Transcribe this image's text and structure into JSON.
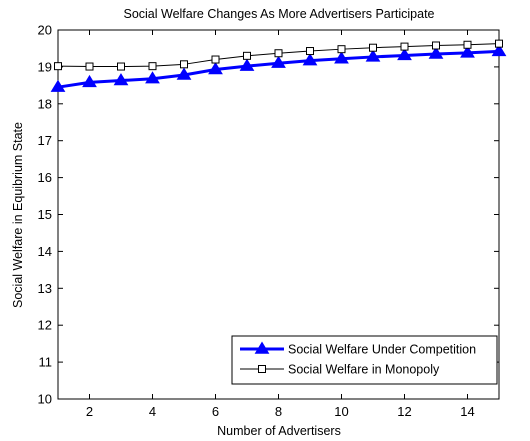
{
  "chart_data": {
    "type": "line",
    "title": "Social Welfare Changes As More Advertisers Participate",
    "xlabel": "Number of Advertisers",
    "ylabel": "Social Welfare in Equibrium State",
    "xlim": [
      1,
      15
    ],
    "ylim": [
      10,
      20
    ],
    "xticks": [
      2,
      4,
      6,
      8,
      10,
      12,
      14
    ],
    "yticks": [
      10,
      11,
      12,
      13,
      14,
      15,
      16,
      17,
      18,
      19,
      20
    ],
    "grid": false,
    "legend_position": "lower-right",
    "x": [
      1,
      2,
      3,
      4,
      5,
      6,
      7,
      8,
      9,
      10,
      11,
      12,
      13,
      14,
      15
    ],
    "series": [
      {
        "name": "Social Welfare Under Competition",
        "values": [
          18.45,
          18.58,
          18.63,
          18.68,
          18.78,
          18.93,
          19.02,
          19.1,
          19.17,
          19.22,
          19.27,
          19.31,
          19.35,
          19.38,
          19.42
        ],
        "color": "#0000ff",
        "marker": "triangle"
      },
      {
        "name": "Social Welfare in Monopoly",
        "values": [
          19.02,
          19.01,
          19.01,
          19.02,
          19.07,
          19.2,
          19.3,
          19.37,
          19.43,
          19.48,
          19.52,
          19.55,
          19.58,
          19.6,
          19.63
        ],
        "color": "#000000",
        "marker": "square"
      }
    ]
  }
}
